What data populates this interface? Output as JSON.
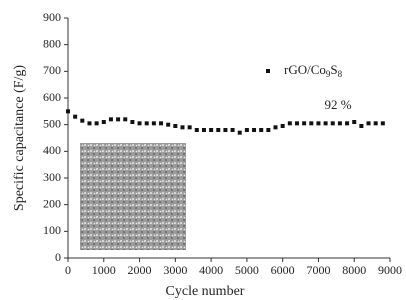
{
  "chart_data": {
    "type": "scatter",
    "x_label": "Cycle number",
    "y_label": "Specific capacitance (F/g)",
    "annotation": "92 %",
    "xlim": [
      0,
      9000
    ],
    "xticks": [
      0,
      1000,
      2000,
      3000,
      4000,
      5000,
      6000,
      7000,
      8000,
      9000
    ],
    "ylim": [
      0,
      900
    ],
    "yticks": [
      0,
      100,
      200,
      300,
      400,
      500,
      600,
      700,
      800,
      900
    ],
    "grid": false,
    "legend": "upper right",
    "series": [
      {
        "name": "rGO/Co9S8",
        "color": "#111111",
        "x": [
          0,
          200,
          400,
          600,
          800,
          1000,
          1200,
          1400,
          1600,
          1800,
          2000,
          2200,
          2400,
          2600,
          2800,
          3000,
          3200,
          3400,
          3600,
          3800,
          4000,
          4200,
          4400,
          4600,
          4800,
          5000,
          5200,
          5400,
          5600,
          5800,
          6000,
          6200,
          6400,
          6600,
          6800,
          7000,
          7200,
          7400,
          7600,
          7800,
          8000,
          8200,
          8400,
          8600,
          8800
        ],
        "values": [
          550,
          530,
          515,
          505,
          505,
          510,
          520,
          520,
          520,
          510,
          505,
          505,
          505,
          505,
          500,
          495,
          490,
          490,
          480,
          480,
          480,
          480,
          480,
          480,
          470,
          480,
          480,
          480,
          480,
          490,
          495,
          505,
          505,
          505,
          505,
          505,
          505,
          505,
          505,
          505,
          510,
          495,
          505,
          505,
          505
        ]
      }
    ]
  }
}
